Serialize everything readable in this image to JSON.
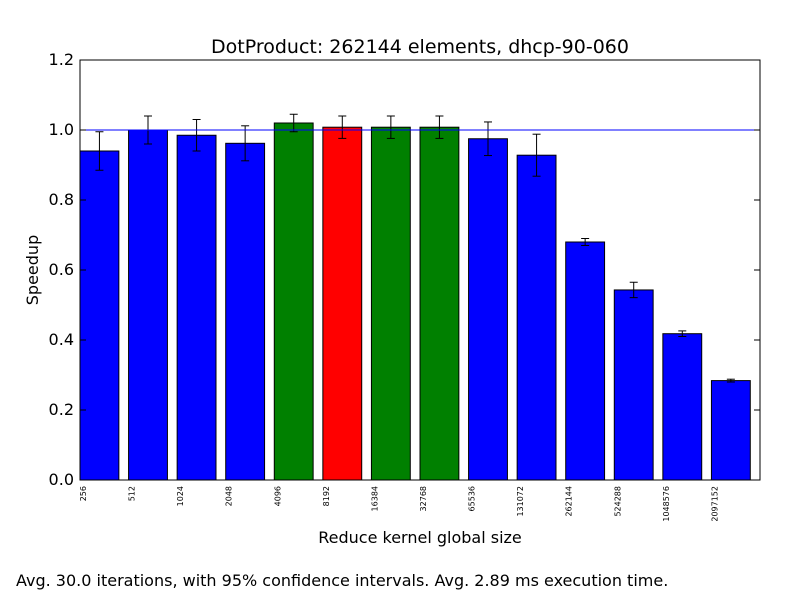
{
  "chart_data": {
    "type": "bar",
    "title": "DotProduct: 262144 elements, dhcp-90-060",
    "xlabel": "Reduce kernel global size",
    "ylabel": "Speedup",
    "ylim": [
      0,
      1.2
    ],
    "yticks": [
      "0.0",
      "0.2",
      "0.4",
      "0.6",
      "0.8",
      "1.0",
      "1.2"
    ],
    "reference_line": 1.0,
    "grid": false,
    "categories": [
      "256",
      "512",
      "1024",
      "2048",
      "4096",
      "8192",
      "16384",
      "32768",
      "65536",
      "131072",
      "262144",
      "524288",
      "1048576",
      "2097152"
    ],
    "values": [
      0.94,
      1.0,
      0.985,
      0.962,
      1.02,
      1.008,
      1.008,
      1.008,
      0.975,
      0.928,
      0.68,
      0.543,
      0.418,
      0.284
    ],
    "errors": [
      0.055,
      0.04,
      0.045,
      0.05,
      0.025,
      0.032,
      0.032,
      0.032,
      0.048,
      0.06,
      0.01,
      0.022,
      0.008,
      0.004
    ],
    "bar_colors": [
      "#0000ff",
      "#0000ff",
      "#0000ff",
      "#0000ff",
      "#008000",
      "#ff0000",
      "#008000",
      "#008000",
      "#0000ff",
      "#0000ff",
      "#0000ff",
      "#0000ff",
      "#0000ff",
      "#0000ff"
    ],
    "reference_line_color": "#0000ff"
  },
  "caption": "Avg. 30.0 iterations, with 95% confidence intervals. Avg. 2.89 ms execution time."
}
